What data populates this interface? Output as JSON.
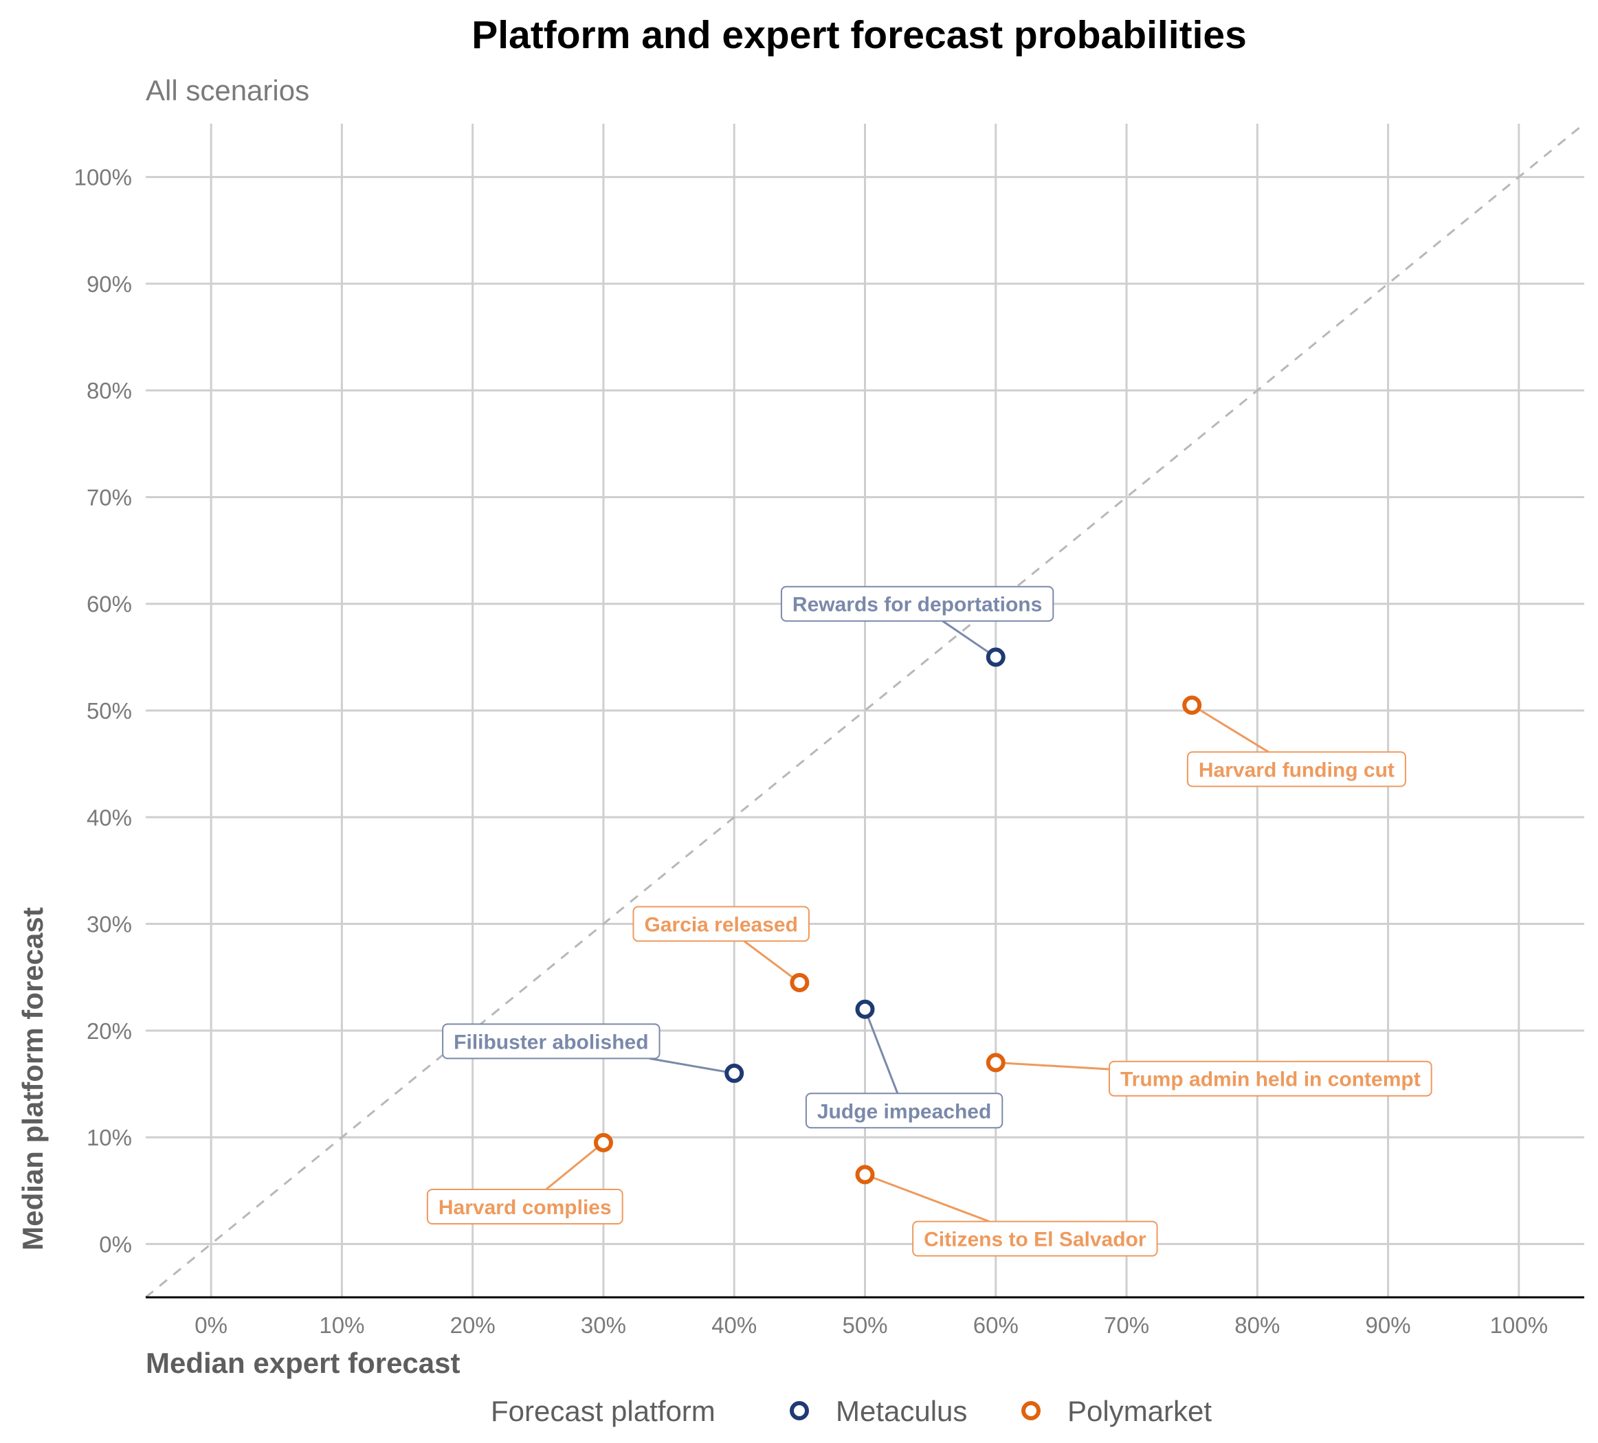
{
  "chart_data": {
    "type": "scatter",
    "title": "Platform and expert forecast probabilities",
    "subtitle": "All scenarios",
    "xlabel": "Median expert forecast",
    "ylabel": "Median platform forecast",
    "xlim": [
      -0.05,
      1.05
    ],
    "ylim": [
      -0.05,
      1.05
    ],
    "x_ticks": [
      {
        "value": 0.0,
        "label": "0%"
      },
      {
        "value": 0.1,
        "label": "10%"
      },
      {
        "value": 0.2,
        "label": "20%"
      },
      {
        "value": 0.3,
        "label": "30%"
      },
      {
        "value": 0.4,
        "label": "40%"
      },
      {
        "value": 0.5,
        "label": "50%"
      },
      {
        "value": 0.6,
        "label": "60%"
      },
      {
        "value": 0.7,
        "label": "70%"
      },
      {
        "value": 0.8,
        "label": "80%"
      },
      {
        "value": 0.9,
        "label": "90%"
      },
      {
        "value": 1.0,
        "label": "100%"
      }
    ],
    "y_ticks": [
      {
        "value": 0.0,
        "label": "0%"
      },
      {
        "value": 0.1,
        "label": "10%"
      },
      {
        "value": 0.2,
        "label": "20%"
      },
      {
        "value": 0.3,
        "label": "30%"
      },
      {
        "value": 0.4,
        "label": "40%"
      },
      {
        "value": 0.5,
        "label": "50%"
      },
      {
        "value": 0.6,
        "label": "60%"
      },
      {
        "value": 0.7,
        "label": "70%"
      },
      {
        "value": 0.8,
        "label": "80%"
      },
      {
        "value": 0.9,
        "label": "90%"
      },
      {
        "value": 1.0,
        "label": "100%"
      }
    ],
    "grid": true,
    "reference_line": "y = x (dashed)",
    "legend": {
      "title": "Forecast platform",
      "position": "bottom",
      "entries": [
        {
          "name": "Metaculus",
          "color": "#1f3a73"
        },
        {
          "name": "Polymarket",
          "color": "#e0620d"
        }
      ]
    },
    "series": [
      {
        "name": "Metaculus",
        "color": "#1f3a73",
        "label_color": "#7a89aa",
        "points": [
          {
            "label": "Rewards for deportations",
            "x": 0.6,
            "y": 0.55,
            "label_x": 0.54,
            "label_y": 0.6
          },
          {
            "label": "Judge impeached",
            "x": 0.5,
            "y": 0.22,
            "label_x": 0.53,
            "label_y": 0.125
          },
          {
            "label": "Filibuster abolished",
            "x": 0.4,
            "y": 0.16,
            "label_x": 0.26,
            "label_y": 0.19
          }
        ]
      },
      {
        "name": "Polymarket",
        "color": "#e0620d",
        "label_color": "#ee9a5d",
        "points": [
          {
            "label": "Harvard funding cut",
            "x": 0.75,
            "y": 0.505,
            "label_x": 0.83,
            "label_y": 0.445
          },
          {
            "label": "Garcia released",
            "x": 0.45,
            "y": 0.245,
            "label_x": 0.39,
            "label_y": 0.3
          },
          {
            "label": "Trump admin held in contempt",
            "x": 0.6,
            "y": 0.17,
            "label_x": 0.81,
            "label_y": 0.155
          },
          {
            "label": "Harvard complies",
            "x": 0.3,
            "y": 0.095,
            "label_x": 0.24,
            "label_y": 0.035
          },
          {
            "label": "Citizens to El Salvador",
            "x": 0.5,
            "y": 0.065,
            "label_x": 0.63,
            "label_y": 0.005
          }
        ]
      }
    ]
  }
}
